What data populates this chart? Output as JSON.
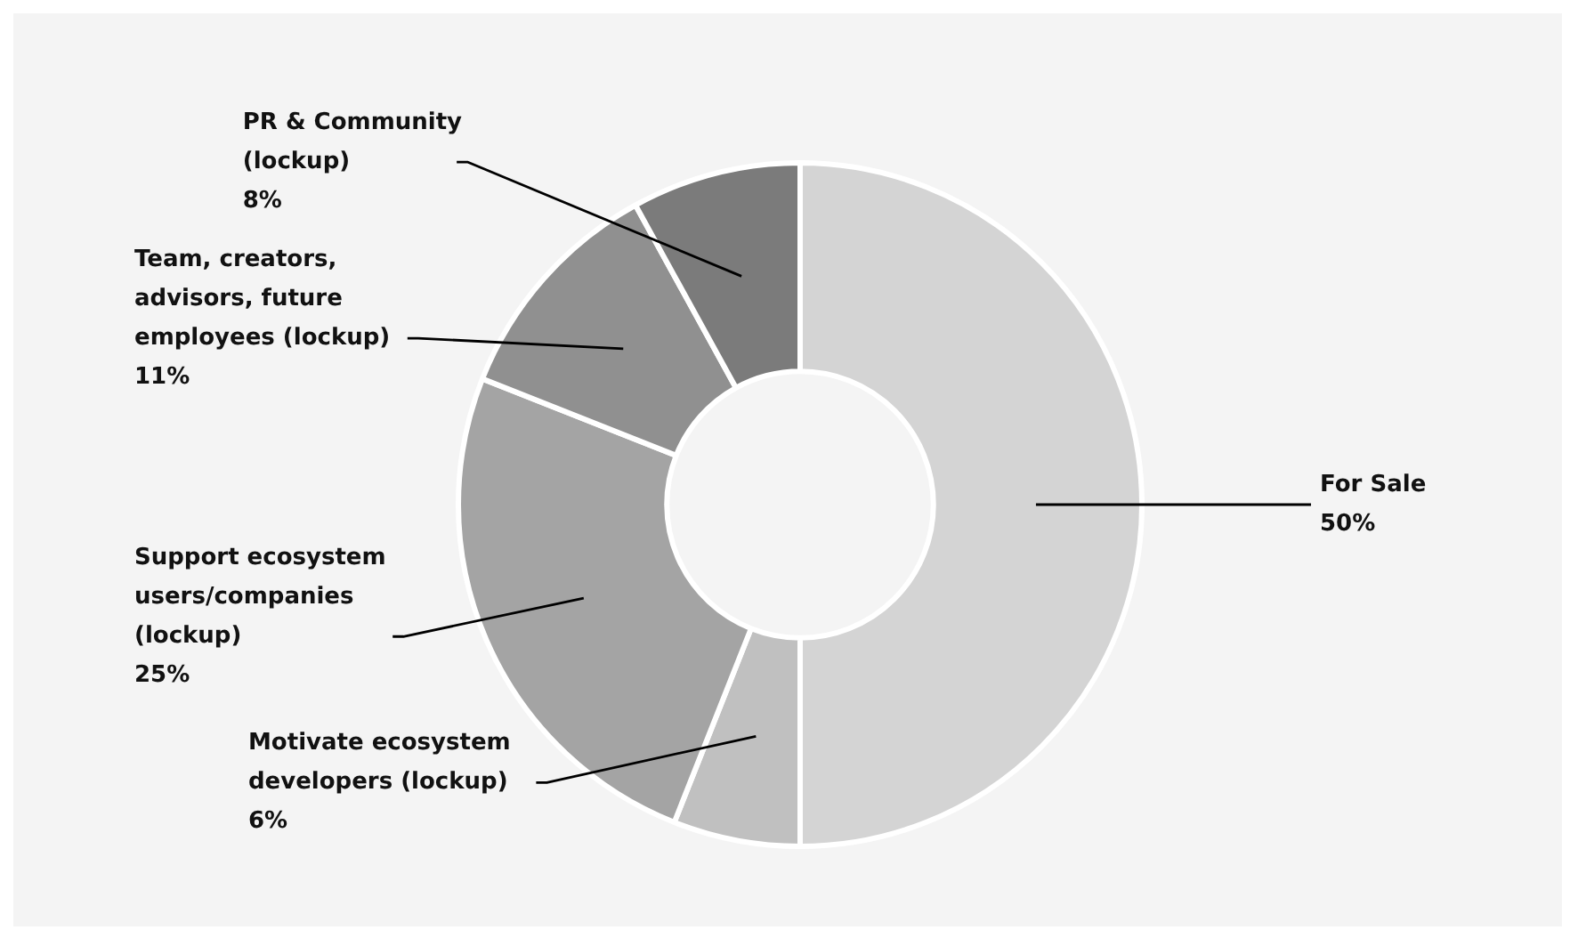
{
  "chart_data": {
    "type": "donut",
    "categories": [
      "For Sale",
      "Motivate ecosystem developers (lockup)",
      "Support ecosystem users/companies (lockup)",
      "Team, creators, advisors, future employees (lockup)",
      "PR & Community (lockup)"
    ],
    "values": [
      50,
      6,
      25,
      11,
      8
    ],
    "value_labels": [
      "50%",
      "6%",
      "25%",
      "11%",
      "8%"
    ],
    "colors": [
      "#d4d4d4",
      "#c0c0c0",
      "#a4a4a4",
      "#909090",
      "#7b7b7b"
    ]
  }
}
